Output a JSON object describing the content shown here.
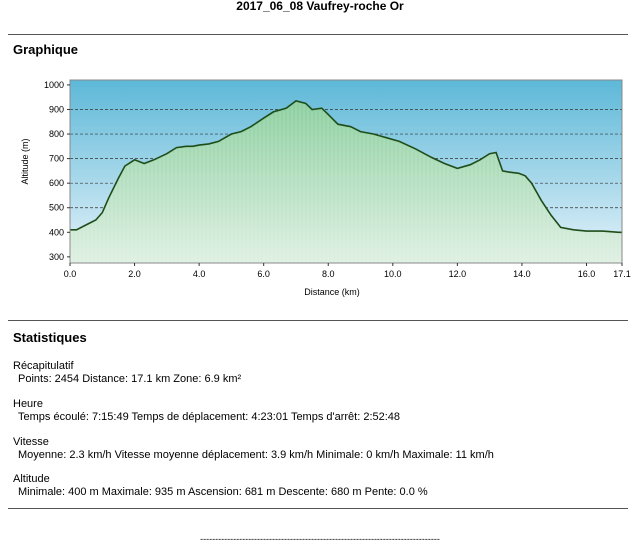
{
  "document": {
    "title": "2017_06_08 Vaufrey-roche Or"
  },
  "graph_section": {
    "title": "Graphique"
  },
  "chart_data": {
    "type": "area",
    "xlabel": "Distance    (km)",
    "ylabel": "Altitude  (m)",
    "xlim": [
      0,
      17.1
    ],
    "ylim": [
      275,
      1020
    ],
    "x_ticks": [
      "0.0",
      "2.0",
      "4.0",
      "6.0",
      "8.0",
      "10.0",
      "12.0",
      "14.0",
      "16.0",
      "17.1"
    ],
    "x_tick_values": [
      0,
      2,
      4,
      6,
      8,
      10,
      12,
      14,
      16,
      17.1
    ],
    "y_ticks": [
      "1000",
      "900",
      "800",
      "700",
      "600",
      "500",
      "400",
      "300"
    ],
    "y_tick_values": [
      1000,
      900,
      800,
      700,
      600,
      500,
      400,
      300
    ],
    "dashed_gridlines": [
      900,
      800,
      700,
      600,
      500,
      400
    ],
    "colors": {
      "line": "#1f4d1a",
      "fill": "#9fd6b0",
      "sky_top": "#5db8d8",
      "sky_bottom": "#e6f3fa"
    },
    "x": [
      0,
      0.2,
      0.5,
      0.8,
      1.0,
      1.2,
      1.5,
      1.7,
      2.0,
      2.3,
      2.6,
      3.0,
      3.3,
      3.6,
      3.8,
      4.0,
      4.3,
      4.6,
      5.0,
      5.3,
      5.6,
      6.0,
      6.3,
      6.7,
      7.0,
      7.3,
      7.5,
      7.8,
      8.0,
      8.3,
      8.7,
      9.0,
      9.4,
      9.8,
      10.2,
      10.7,
      11.2,
      11.6,
      12.0,
      12.4,
      12.7,
      13.0,
      13.2,
      13.4,
      13.6,
      13.9,
      14.1,
      14.3,
      14.6,
      14.9,
      15.2,
      15.6,
      16.0,
      16.5,
      17.0,
      17.1
    ],
    "y": [
      410,
      410,
      430,
      450,
      480,
      540,
      620,
      670,
      695,
      680,
      695,
      720,
      745,
      750,
      750,
      755,
      760,
      770,
      800,
      810,
      830,
      865,
      890,
      905,
      935,
      925,
      900,
      905,
      880,
      840,
      830,
      810,
      800,
      785,
      770,
      740,
      705,
      680,
      660,
      675,
      695,
      720,
      725,
      650,
      645,
      640,
      630,
      600,
      530,
      470,
      420,
      410,
      405,
      405,
      400,
      400
    ]
  },
  "stats_section": {
    "title": "Statistiques",
    "blocks": [
      {
        "label": "Récapitulatif",
        "values": "Points: 2454  Distance: 17.1 km  Zone: 6.9 km²"
      },
      {
        "label": "Heure",
        "values": "Temps écoulé: 7:15:49  Temps de déplacement: 4:23:01  Temps d'arrêt: 2:52:48"
      },
      {
        "label": "Vitesse",
        "values": "Moyenne: 2.3 km/h  Vitesse moyenne déplacement: 3.9 km/h  Minimale: 0 km/h  Maximale: 11 km/h"
      },
      {
        "label": "Altitude",
        "values": "Minimale: 400 m  Maximale: 935 m  Ascension: 681 m  Descente: 680 m  Pente: 0.0 %"
      }
    ]
  },
  "footer": {
    "dashes": "--------------------------------------------------------------------------------"
  }
}
